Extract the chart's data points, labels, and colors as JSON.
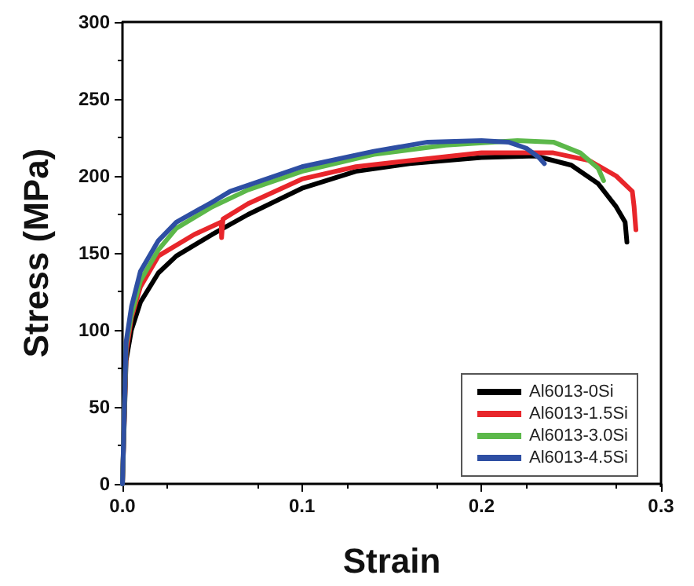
{
  "chart_data": {
    "type": "line",
    "xlabel": "Strain",
    "ylabel": "Stress (MPa)",
    "xlim": [
      0,
      0.3
    ],
    "ylim": [
      0,
      300
    ],
    "xticks": [
      {
        "value": 0,
        "label": "0.0"
      },
      0.1,
      0.2,
      0.3
    ],
    "yticks": [
      0,
      50,
      100,
      150,
      200,
      250,
      300
    ],
    "grid": false,
    "legend": "bottom right",
    "marker": "none",
    "line_style": "solid",
    "series": [
      {
        "name": "Al6013-0Si",
        "color": "#000000",
        "x": [
          0,
          0.002,
          0.005,
          0.01,
          0.02,
          0.03,
          0.05,
          0.07,
          0.1,
          0.13,
          0.16,
          0.2,
          0.23,
          0.25,
          0.265,
          0.275,
          0.28,
          0.281
        ],
        "values": [
          0,
          80,
          100,
          118,
          137,
          148,
          162,
          175,
          192,
          203,
          208,
          212,
          213,
          207,
          195,
          180,
          170,
          157
        ]
      },
      {
        "name": "Al6013-1.5Si",
        "color": "#e8262b",
        "x": [
          0,
          0.002,
          0.005,
          0.01,
          0.02,
          0.04,
          0.055,
          0.0552,
          0.056,
          0.07,
          0.1,
          0.13,
          0.16,
          0.2,
          0.24,
          0.26,
          0.275,
          0.284,
          0.285,
          0.286
        ],
        "values": [
          0,
          85,
          108,
          128,
          148,
          162,
          170,
          160,
          172,
          182,
          198,
          206,
          210,
          215,
          215,
          210,
          200,
          190,
          180,
          165
        ]
      },
      {
        "name": "Al6013-3.0Si",
        "color": "#5cb84a",
        "x": [
          0,
          0.002,
          0.005,
          0.01,
          0.02,
          0.03,
          0.05,
          0.07,
          0.1,
          0.14,
          0.18,
          0.22,
          0.24,
          0.255,
          0.265,
          0.268
        ],
        "values": [
          0,
          90,
          110,
          132,
          152,
          166,
          180,
          191,
          203,
          214,
          220,
          223,
          222,
          215,
          205,
          197
        ]
      },
      {
        "name": "Al6013-4.5Si",
        "color": "#2e4fa3",
        "x": [
          0,
          0.002,
          0.005,
          0.01,
          0.02,
          0.03,
          0.05,
          0.06,
          0.1,
          0.14,
          0.17,
          0.2,
          0.215,
          0.225,
          0.232,
          0.235
        ],
        "values": [
          0,
          92,
          115,
          138,
          158,
          170,
          183,
          190,
          206,
          216,
          222,
          223,
          222,
          218,
          212,
          208
        ]
      }
    ]
  }
}
